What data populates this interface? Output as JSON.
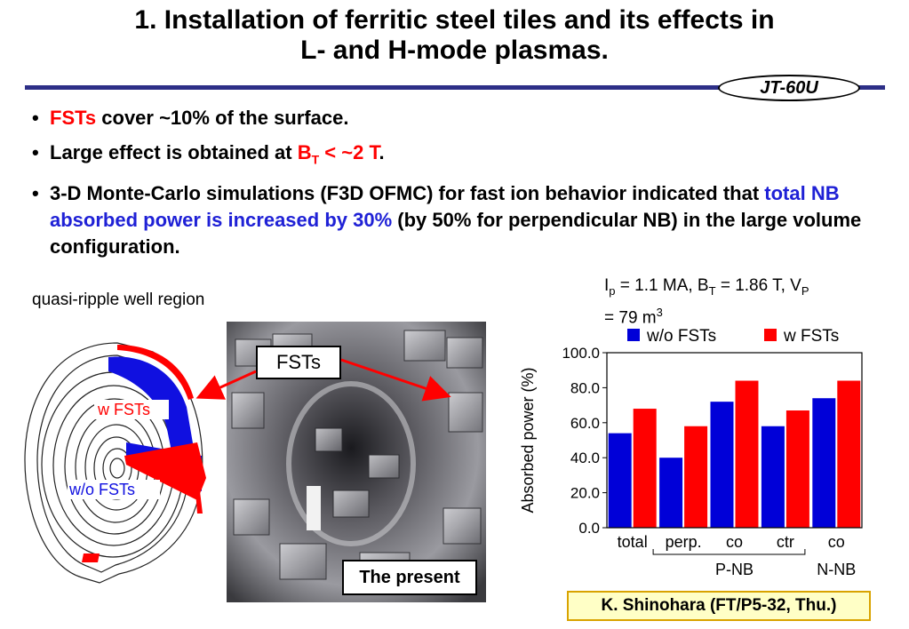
{
  "title": {
    "line1": "1. Installation of ferritic steel tiles and its effects in",
    "line2": "L- and H-mode plasmas."
  },
  "badge": "JT-60U",
  "bullets": {
    "b1": {
      "dot": "•",
      "red": "FSTs",
      "rest": " cover ~10% of the surface."
    },
    "b2": {
      "dot": "•",
      "pre": "Large effect is obtained at ",
      "b": "B",
      "sub": "T",
      "post": " < ~2 T",
      "end": "."
    },
    "b3": {
      "dot": "•",
      "pre": "3-D Monte-Carlo simulations (F3D OFMC) for fast ion behavior indicated that ",
      "blue": "total NB absorbed power is increased by 30%",
      "post": " (by 50% for perpendicular NB) in the large volume configuration."
    }
  },
  "left_figure": {
    "label": "quasi-ripple well region",
    "w_fsts": "w FSTs",
    "wo_fsts": "w/o FSTs"
  },
  "photo": {
    "callout": "FSTs",
    "caption": "The present"
  },
  "conditions": {
    "ip": "I",
    "ip_sub": "p",
    "ip_val": " = 1.1 MA, B",
    "bt_sub": "T",
    "bt_val": " = 1.86 T, V",
    "vp_sub": "P",
    "line2": "= 79 m",
    "sup": "3"
  },
  "chart_data": {
    "type": "bar",
    "categories": [
      "total",
      "perp.",
      "co",
      "ctr",
      "co"
    ],
    "groups": [
      {
        "label": "P-NB",
        "from": 1,
        "to": 3
      },
      {
        "label": "N-NB",
        "from": 4,
        "to": 4
      }
    ],
    "series": [
      {
        "name": "w/o FSTs",
        "color": "#0000d8",
        "values": [
          54,
          40,
          72,
          58,
          74
        ]
      },
      {
        "name": "w FSTs",
        "color": "#ff0000",
        "values": [
          68,
          58,
          84,
          67,
          84
        ]
      }
    ],
    "ylabel": "Absorbed power (%)",
    "ylim": [
      0,
      100
    ],
    "yticks": [
      "0.0",
      "20.0",
      "40.0",
      "60.0",
      "80.0",
      "100.0"
    ],
    "legend_position": "top"
  },
  "credit": "K. Shinohara (FT/P5-32, Thu.)"
}
